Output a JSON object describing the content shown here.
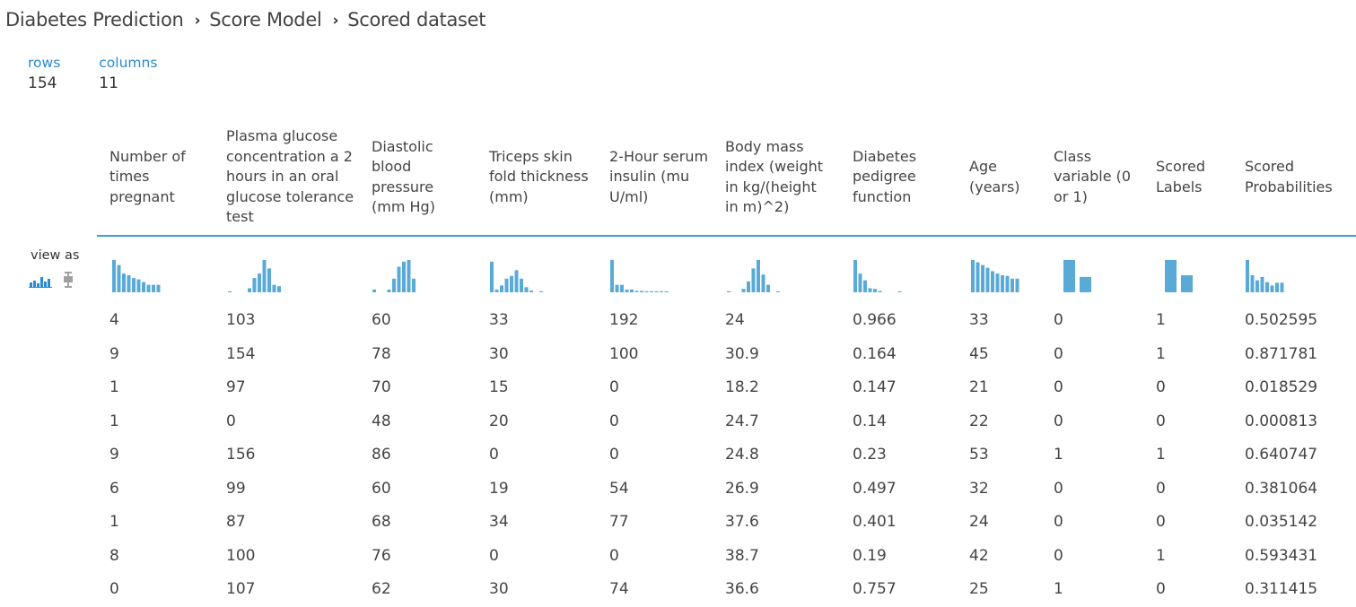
{
  "breadcrumb": [
    "Diabetes Prediction",
    "Score Model",
    "Scored dataset"
  ],
  "stats": {
    "rows_label": "rows",
    "rows_value": "154",
    "columns_label": "columns",
    "columns_value": "11"
  },
  "view_as_label": "view as",
  "view_icons": [
    "histogram-icon",
    "boxplot-icon"
  ],
  "columns": [
    "Number of times pregnant",
    "Plasma glucose concentration a 2 hours in an oral glucose tolerance test",
    "Diastolic blood pressure (mm Hg)",
    "Triceps skin fold thickness (mm)",
    "2-Hour serum insulin (mu U/ml)",
    "Body mass index (weight in kg/(height in m)^2)",
    "Diabetes pedigree function",
    "Age (years)",
    "Class variable (0 or 1)",
    "Scored Labels",
    "Scored Probabilities"
  ],
  "histograms": [
    [
      0.95,
      0.8,
      0.55,
      0.5,
      0.42,
      0.38,
      0.3,
      0.22,
      0.22,
      0.22
    ],
    [
      0.03,
      0,
      0,
      0,
      0.12,
      0.42,
      0.55,
      0.95,
      0.7,
      0.22,
      0.18
    ],
    [
      0.08,
      0,
      0,
      0.08,
      0.4,
      0.75,
      0.9,
      0.95,
      0.4
    ],
    [
      0.9,
      0.08,
      0.2,
      0.4,
      0.48,
      0.65,
      0.4,
      0.15,
      0.05,
      0,
      0.03
    ],
    [
      0.95,
      0.22,
      0.22,
      0.08,
      0.08,
      0.04,
      0.04,
      0.03,
      0.03,
      0.03,
      0.03,
      0.03
    ],
    [
      0.03,
      0,
      0,
      0.1,
      0.32,
      0.7,
      0.95,
      0.52,
      0.22,
      0,
      0.03
    ],
    [
      0.95,
      0.55,
      0.35,
      0.12,
      0.1,
      0.04,
      0,
      0,
      0,
      0.03
    ],
    [
      0.95,
      0.88,
      0.8,
      0.72,
      0.62,
      0.55,
      0.5,
      0.48,
      0.4,
      0.4
    ],
    [
      0.95,
      0.45
    ],
    [
      0.95,
      0.5
    ],
    [
      0.95,
      0.5,
      0.35,
      0.45,
      0.3,
      0.2,
      0.28,
      0.28
    ]
  ],
  "rows": [
    [
      "4",
      "103",
      "60",
      "33",
      "192",
      "24",
      "0.966",
      "33",
      "0",
      "1",
      "0.502595"
    ],
    [
      "9",
      "154",
      "78",
      "30",
      "100",
      "30.9",
      "0.164",
      "45",
      "0",
      "1",
      "0.871781"
    ],
    [
      "1",
      "97",
      "70",
      "15",
      "0",
      "18.2",
      "0.147",
      "21",
      "0",
      "0",
      "0.018529"
    ],
    [
      "1",
      "0",
      "48",
      "20",
      "0",
      "24.7",
      "0.14",
      "22",
      "0",
      "0",
      "0.000813"
    ],
    [
      "9",
      "156",
      "86",
      "0",
      "0",
      "24.8",
      "0.23",
      "53",
      "1",
      "1",
      "0.640747"
    ],
    [
      "6",
      "99",
      "60",
      "19",
      "54",
      "26.9",
      "0.497",
      "32",
      "0",
      "0",
      "0.381064"
    ],
    [
      "1",
      "87",
      "68",
      "34",
      "77",
      "37.6",
      "0.401",
      "24",
      "0",
      "0",
      "0.035142"
    ],
    [
      "8",
      "100",
      "76",
      "0",
      "0",
      "38.7",
      "0.19",
      "42",
      "0",
      "1",
      "0.593431"
    ],
    [
      "0",
      "107",
      "62",
      "30",
      "74",
      "36.6",
      "0.757",
      "25",
      "1",
      "0",
      "0.311415"
    ]
  ],
  "colors": {
    "accent": "#2a8bd0",
    "histogram": "#5aaad8",
    "divider": "#3d9bd6",
    "icon_inactive": "#a0a0a0"
  }
}
